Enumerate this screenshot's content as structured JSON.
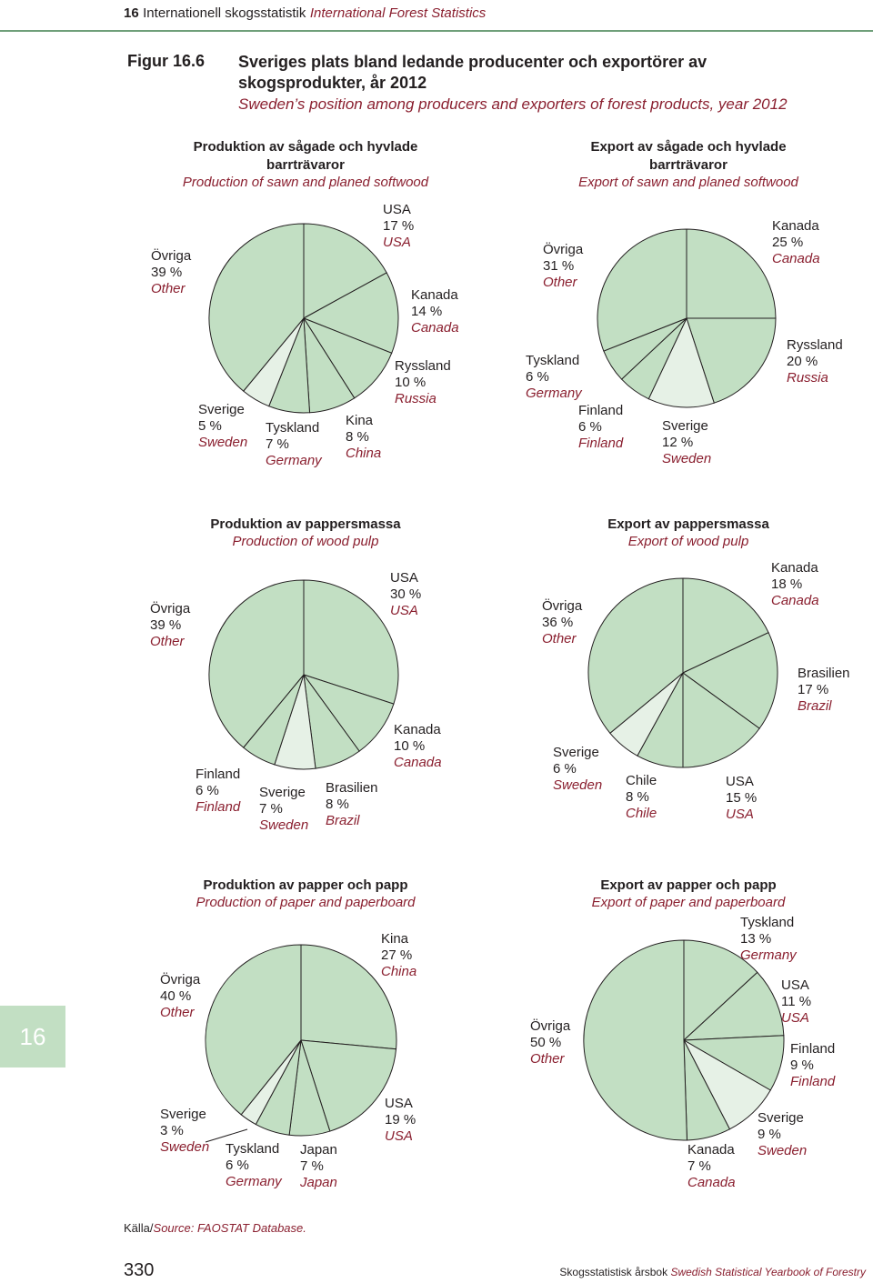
{
  "header": {
    "section": "16",
    "title_sv": "Internationell skogsstatistik",
    "title_en": "International Forest Statistics"
  },
  "figure": {
    "label": "Figur 16.6",
    "title_sv": "Sveriges plats bland ledande producenter och exportörer av skogsprodukter, år 2012",
    "title_en": "Sweden’s position among producers and exporters of forest products, year 2012"
  },
  "chart_data": [
    {
      "type": "pie",
      "title": "Produktion av sågade och hyvlade barrträvaror",
      "title_en": "Production of sawn and planed softwood",
      "slices": [
        {
          "sv": "USA",
          "en": "USA",
          "value": 17,
          "pct": "17 %"
        },
        {
          "sv": "Kanada",
          "en": "Canada",
          "value": 14,
          "pct": "14 %"
        },
        {
          "sv": "Ryssland",
          "en": "Russia",
          "value": 10,
          "pct": "10 %"
        },
        {
          "sv": "Kina",
          "en": "China",
          "value": 8,
          "pct": "8 %"
        },
        {
          "sv": "Tyskland",
          "en": "Germany",
          "value": 7,
          "pct": "7 %"
        },
        {
          "sv": "Sverige",
          "en": "Sweden",
          "value": 5,
          "pct": "5 %",
          "highlight": true
        },
        {
          "sv": "Övriga",
          "en": "Other",
          "value": 39,
          "pct": "39 %"
        }
      ]
    },
    {
      "type": "pie",
      "title": "Export av sågade och hyvlade barrträvaror",
      "title_en": "Export of sawn and planed softwood",
      "slices": [
        {
          "sv": "Kanada",
          "en": "Canada",
          "value": 25,
          "pct": "25 %"
        },
        {
          "sv": "Ryssland",
          "en": "Russia",
          "value": 20,
          "pct": "20 %"
        },
        {
          "sv": "Sverige",
          "en": "Sweden",
          "value": 12,
          "pct": "12 %",
          "highlight": true
        },
        {
          "sv": "Finland",
          "en": "Finland",
          "value": 6,
          "pct": "6 %"
        },
        {
          "sv": "Tyskland",
          "en": "Germany",
          "value": 6,
          "pct": "6 %"
        },
        {
          "sv": "Övriga",
          "en": "Other",
          "value": 31,
          "pct": "31 %"
        }
      ]
    },
    {
      "type": "pie",
      "title": "Produktion av pappersmassa",
      "title_en": "Production of wood pulp",
      "slices": [
        {
          "sv": "USA",
          "en": "USA",
          "value": 30,
          "pct": "30 %"
        },
        {
          "sv": "Kanada",
          "en": "Canada",
          "value": 10,
          "pct": "10 %"
        },
        {
          "sv": "Brasilien",
          "en": "Brazil",
          "value": 8,
          "pct": "8 %"
        },
        {
          "sv": "Sverige",
          "en": "Sweden",
          "value": 7,
          "pct": "7 %",
          "highlight": true
        },
        {
          "sv": "Finland",
          "en": "Finland",
          "value": 6,
          "pct": "6 %"
        },
        {
          "sv": "Övriga",
          "en": "Other",
          "value": 39,
          "pct": "39 %"
        }
      ]
    },
    {
      "type": "pie",
      "title": "Export av pappersmassa",
      "title_en": "Export of wood pulp",
      "slices": [
        {
          "sv": "Kanada",
          "en": "Canada",
          "value": 18,
          "pct": "18 %"
        },
        {
          "sv": "Brasilien",
          "en": "Brazil",
          "value": 17,
          "pct": "17 %"
        },
        {
          "sv": "USA",
          "en": "USA",
          "value": 15,
          "pct": "15 %"
        },
        {
          "sv": "Chile",
          "en": "Chile",
          "value": 8,
          "pct": "8 %"
        },
        {
          "sv": "Sverige",
          "en": "Sweden",
          "value": 6,
          "pct": "6 %",
          "highlight": true
        },
        {
          "sv": "Övriga",
          "en": "Other",
          "value": 36,
          "pct": "36 %"
        }
      ]
    },
    {
      "type": "pie",
      "title": "Produktion av papper och papp",
      "title_en": "Production of paper and paperboard",
      "slices": [
        {
          "sv": "Kina",
          "en": "China",
          "value": 27,
          "pct": "27 %"
        },
        {
          "sv": "USA",
          "en": "USA",
          "value": 19,
          "pct": "19 %"
        },
        {
          "sv": "Japan",
          "en": "Japan",
          "value": 7,
          "pct": "7 %"
        },
        {
          "sv": "Tyskland",
          "en": "Germany",
          "value": 6,
          "pct": "6 %"
        },
        {
          "sv": "Sverige",
          "en": "Sweden",
          "value": 3,
          "pct": "3 %",
          "highlight": true
        },
        {
          "sv": "Övriga",
          "en": "Other",
          "value": 40,
          "pct": "40 %"
        }
      ]
    },
    {
      "type": "pie",
      "title": "Export av papper och papp",
      "title_en": "Export of paper and paperboard",
      "slices": [
        {
          "sv": "Tyskland",
          "en": "Germany",
          "value": 13,
          "pct": "13 %"
        },
        {
          "sv": "USA",
          "en": "USA",
          "value": 11,
          "pct": "11 %"
        },
        {
          "sv": "Finland",
          "en": "Finland",
          "value": 9,
          "pct": "9 %"
        },
        {
          "sv": "Sverige",
          "en": "Sweden",
          "value": 9,
          "pct": "9 %",
          "highlight": true
        },
        {
          "sv": "Kanada",
          "en": "Canada",
          "value": 7,
          "pct": "7 %"
        },
        {
          "sv": "Övriga",
          "en": "Other",
          "value": 50,
          "pct": "50 %"
        }
      ]
    }
  ],
  "colors": {
    "slice_fill": "#c2dfc3",
    "highlight_fill": "#e6f1e6",
    "stroke": "#231f20",
    "english_text": "#8a1f2f"
  },
  "source": {
    "sv": "Källa/",
    "en": "Source: FAOSTAT Database."
  },
  "side_tab": "16",
  "footer": {
    "page": "330",
    "sv": "Skogsstatistisk årsbok",
    "en": "Swedish Statistical Yearbook of Forestry"
  }
}
